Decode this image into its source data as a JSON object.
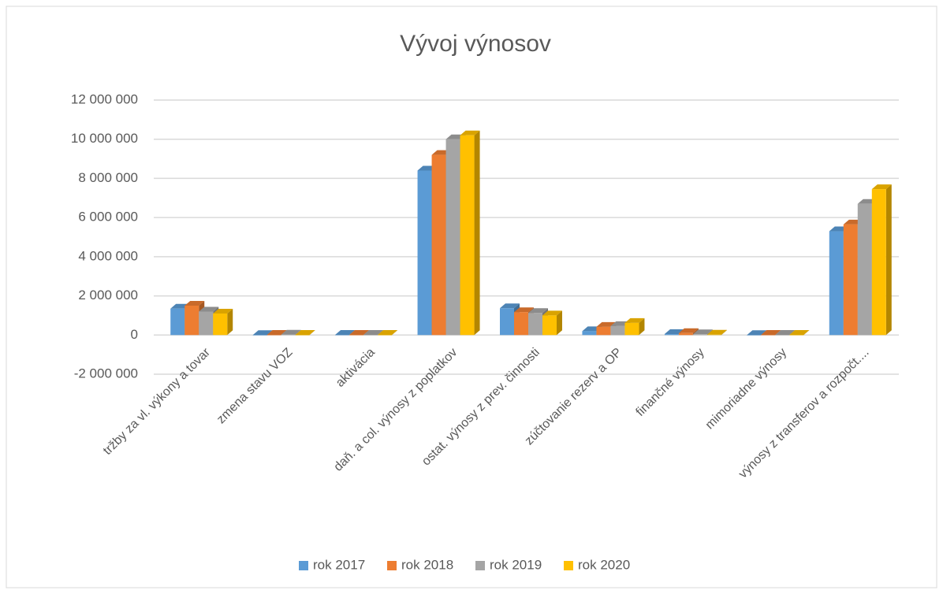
{
  "chart_data": {
    "type": "bar",
    "title": "Vývoj výnosov",
    "categories": [
      "tržby za vl. výkony a tovar",
      "zmena stavu VOZ",
      "aktivácia",
      "daň. a col. výnosy z poplatkov",
      "ostat. výnosy z prev. činnosti",
      "zúčtovanie rezerv a OP",
      "finančné výnosy",
      "mimoriadne výnosy",
      "výnosy z transferov a rozpočt...."
    ],
    "series": [
      {
        "name": "rok 2017",
        "color": "#5b9bd5",
        "values": [
          1350000,
          -20000,
          10000,
          8400000,
          1370000,
          200000,
          50000,
          0,
          5300000
        ]
      },
      {
        "name": "rok 2018",
        "color": "#ed7d31",
        "values": [
          1500000,
          10000,
          10000,
          9200000,
          1170000,
          420000,
          100000,
          10000,
          5650000
        ]
      },
      {
        "name": "rok 2019",
        "color": "#a5a5a5",
        "values": [
          1200000,
          20000,
          10000,
          10000000,
          1130000,
          460000,
          40000,
          10000,
          6700000
        ]
      },
      {
        "name": "rok 2020",
        "color": "#ffc000",
        "values": [
          1100000,
          10000,
          10000,
          10200000,
          1000000,
          620000,
          20000,
          10000,
          7450000
        ]
      }
    ],
    "ylim": [
      -2000000,
      12000000
    ],
    "yticks": [
      {
        "value": -2000000,
        "label": "-2 000 000"
      },
      0,
      {
        "value": 2000000,
        "label": "2 000 000"
      },
      {
        "value": 4000000,
        "label": "4 000 000"
      },
      {
        "value": 6000000,
        "label": "6 000 000"
      },
      {
        "value": 8000000,
        "label": "8 000 000"
      },
      {
        "value": 10000000,
        "label": "10 000 000"
      },
      {
        "value": 12000000,
        "label": "12 000 000"
      }
    ],
    "grid": true,
    "legend": "bottom"
  }
}
